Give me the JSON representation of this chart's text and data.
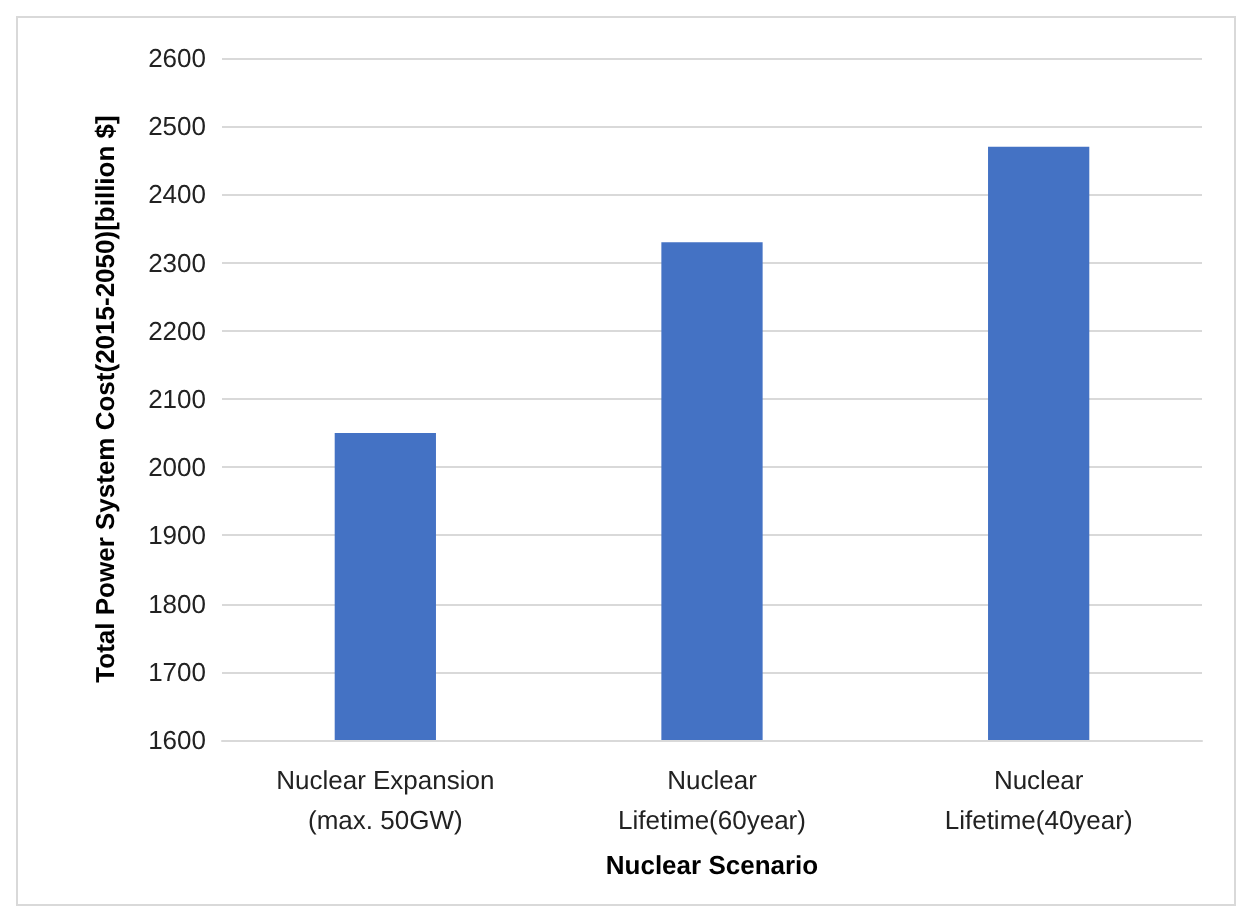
{
  "chart_data": {
    "type": "bar",
    "xlabel": "Nuclear Scenario",
    "ylabel": "Total Power System Cost(2015-2050)[billion $]",
    "categories": [
      "Nuclear Expansion\n(max. 50GW)",
      "Nuclear\nLifetime(60year)",
      "Nuclear\nLifetime(40year)"
    ],
    "values": [
      2050,
      2330,
      2470
    ],
    "color": "#4472c4",
    "ylim": [
      1600,
      2600
    ],
    "yticks": [
      1600,
      1700,
      1800,
      1900,
      2000,
      2100,
      2200,
      2300,
      2400,
      2500,
      2600
    ],
    "grid": "y"
  }
}
